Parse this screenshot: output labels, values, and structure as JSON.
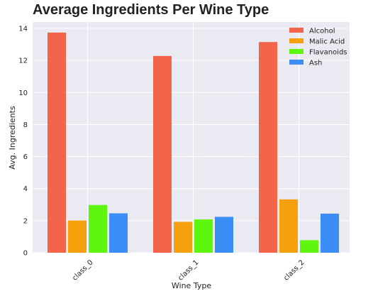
{
  "chart_data": {
    "type": "bar",
    "title": "Average Ingredients Per Wine Type",
    "xlabel": "Wine Type",
    "ylabel": "Avg. Ingredients",
    "categories": [
      "class_0",
      "class_1",
      "class_2"
    ],
    "series": [
      {
        "name": "Alcohol",
        "color": "#f4644a",
        "values": [
          13.74,
          12.28,
          13.15
        ]
      },
      {
        "name": "Malic Acid",
        "color": "#f5a00c",
        "values": [
          2.01,
          1.93,
          3.33
        ]
      },
      {
        "name": "Flavanoids",
        "color": "#5ef50f",
        "values": [
          2.98,
          2.08,
          0.78
        ]
      },
      {
        "name": "Ash",
        "color": "#3b8ef5",
        "values": [
          2.46,
          2.24,
          2.44
        ]
      }
    ],
    "ylim": [
      0,
      14.4
    ],
    "yticks": [
      0,
      2,
      4,
      6,
      8,
      10,
      12,
      14
    ],
    "grid": true,
    "legend_position": "top-right",
    "plot_background": "#eaeaf2"
  }
}
